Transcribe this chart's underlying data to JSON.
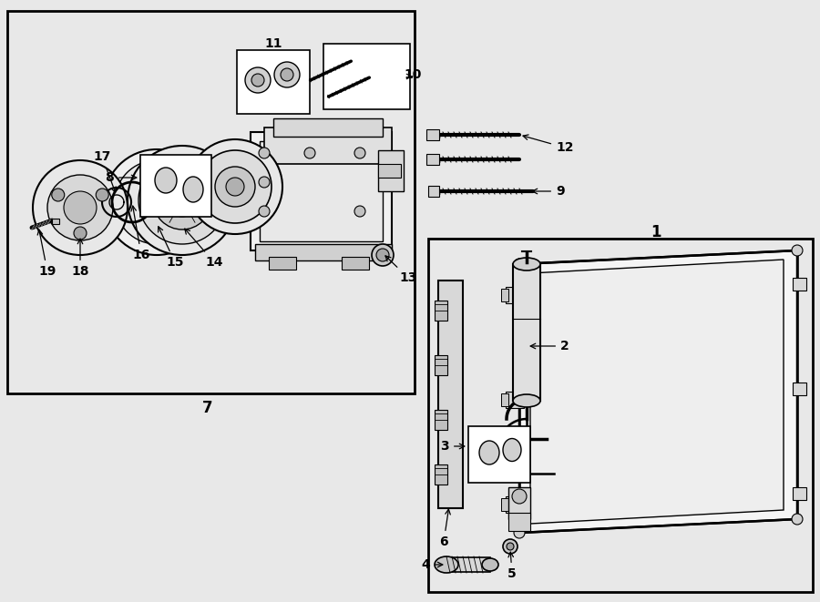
{
  "bg_color": "#e8e8e8",
  "line_color": "#000000",
  "fig_width": 9.0,
  "fig_height": 6.61,
  "dpi": 100
}
